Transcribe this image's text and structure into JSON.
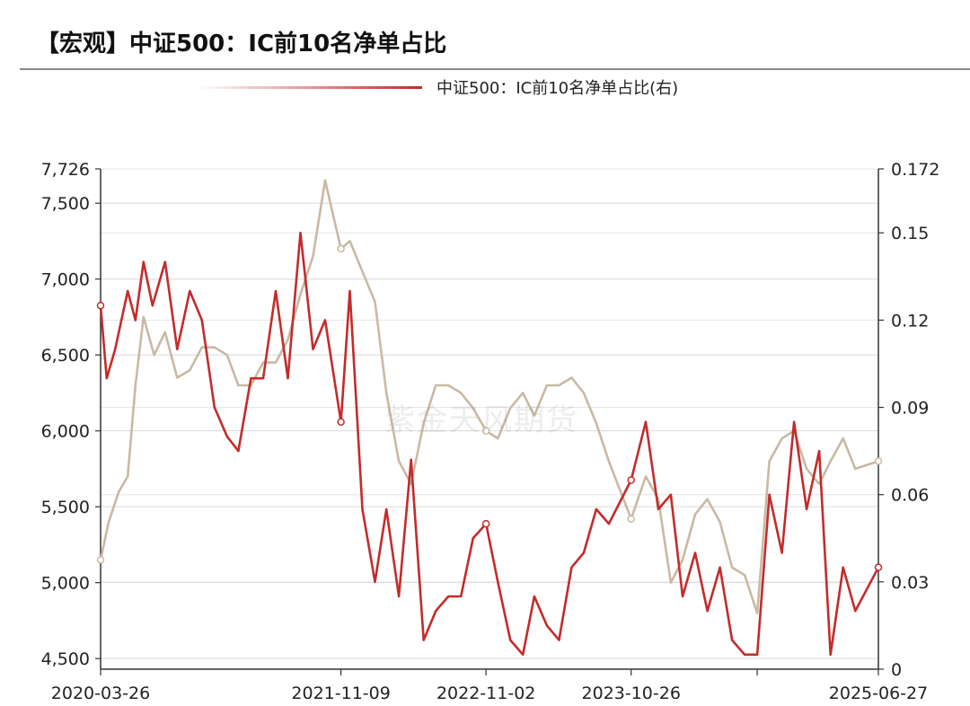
{
  "chart_data": {
    "type": "line",
    "title": "【宏观】中证500：IC前10名净单占比",
    "legend": {
      "position": "top-right",
      "entries": [
        "中证500：IC前10名净单占比(右)"
      ]
    },
    "watermark": "紫金天风期货",
    "x_ticks": [
      "2020-03-26",
      "2021-11-09",
      "2022-11-02",
      "2023-10-26",
      "2025-06-27"
    ],
    "y_left": {
      "min": 4430,
      "max": 7726,
      "ticks": [
        "7,726",
        "7,500",
        "7,000",
        "6,500",
        "6,000",
        "5,500",
        "5,000",
        "4,500"
      ],
      "tick_values": [
        7726,
        7500,
        7000,
        6500,
        6000,
        5500,
        5000,
        4500
      ]
    },
    "y_right": {
      "min": 0,
      "max": 0.172,
      "ticks": [
        "0.172",
        "0.15",
        "0.12",
        "0.09",
        "0.06",
        "0.03",
        "0"
      ],
      "tick_values": [
        0.172,
        0.15,
        0.12,
        0.09,
        0.06,
        0.03,
        0
      ]
    },
    "grid": true,
    "colors": {
      "index": "#c9b9a3",
      "ratio": "#c42b2b"
    },
    "series": [
      {
        "key": "index",
        "axis": "left",
        "dates": [
          "2020-03-26",
          "2020-04-15",
          "2020-05-10",
          "2020-06-01",
          "2020-06-20",
          "2020-07-10",
          "2020-08-05",
          "2020-09-01",
          "2020-10-01",
          "2020-11-01",
          "2020-12-01",
          "2021-01-01",
          "2021-02-01",
          "2021-03-01",
          "2021-04-01",
          "2021-05-01",
          "2021-06-01",
          "2021-07-01",
          "2021-08-01",
          "2021-09-01",
          "2021-10-01",
          "2021-11-09",
          "2021-12-01",
          "2022-01-01",
          "2022-02-01",
          "2022-03-01",
          "2022-04-01",
          "2022-05-01",
          "2022-06-01",
          "2022-07-01",
          "2022-08-01",
          "2022-09-01",
          "2022-10-01",
          "2022-11-02",
          "2022-12-01",
          "2023-01-01",
          "2023-02-01",
          "2023-03-01",
          "2023-04-01",
          "2023-05-01",
          "2023-06-01",
          "2023-07-01",
          "2023-08-01",
          "2023-09-01",
          "2023-10-26",
          "2023-12-01",
          "2024-01-01",
          "2024-02-01",
          "2024-03-01",
          "2024-04-01",
          "2024-05-01",
          "2024-06-01",
          "2024-07-01",
          "2024-08-01",
          "2024-09-01",
          "2024-10-01",
          "2024-11-01",
          "2024-12-01",
          "2025-01-01",
          "2025-02-01",
          "2025-03-01",
          "2025-04-01",
          "2025-05-01",
          "2025-06-27"
        ],
        "values": [
          5150,
          5400,
          5600,
          5700,
          6300,
          6750,
          6500,
          6650,
          6350,
          6400,
          6550,
          6550,
          6500,
          6300,
          6300,
          6450,
          6450,
          6600,
          6900,
          7150,
          7650,
          7200,
          7250,
          7050,
          6850,
          6250,
          5800,
          5650,
          6050,
          6300,
          6300,
          6250,
          6150,
          6000,
          5950,
          6150,
          6250,
          6100,
          6300,
          6300,
          6350,
          6250,
          6050,
          5800,
          5420,
          5700,
          5550,
          5000,
          5150,
          5450,
          5550,
          5400,
          5100,
          5050,
          4800,
          5800,
          5950,
          6000,
          5750,
          5650,
          5800,
          5950,
          5750,
          5800
        ]
      },
      {
        "key": "ratio",
        "axis": "right",
        "dates": [
          "2020-03-26",
          "2020-04-10",
          "2020-05-01",
          "2020-06-01",
          "2020-06-20",
          "2020-07-10",
          "2020-08-01",
          "2020-09-01",
          "2020-10-01",
          "2020-11-01",
          "2020-12-01",
          "2021-01-01",
          "2021-02-01",
          "2021-03-01",
          "2021-04-01",
          "2021-05-01",
          "2021-06-01",
          "2021-07-01",
          "2021-08-01",
          "2021-09-01",
          "2021-10-01",
          "2021-11-09",
          "2021-12-01",
          "2022-01-01",
          "2022-02-01",
          "2022-03-01",
          "2022-04-01",
          "2022-05-01",
          "2022-06-01",
          "2022-07-01",
          "2022-08-01",
          "2022-09-01",
          "2022-10-01",
          "2022-11-02",
          "2022-12-01",
          "2023-01-01",
          "2023-02-01",
          "2023-03-01",
          "2023-04-01",
          "2023-05-01",
          "2023-06-01",
          "2023-07-01",
          "2023-08-01",
          "2023-09-01",
          "2023-10-26",
          "2023-12-01",
          "2024-01-01",
          "2024-02-01",
          "2024-03-01",
          "2024-04-01",
          "2024-05-01",
          "2024-06-01",
          "2024-07-01",
          "2024-08-01",
          "2024-09-01",
          "2024-10-01",
          "2024-11-01",
          "2024-12-01",
          "2025-01-01",
          "2025-02-01",
          "2025-03-01",
          "2025-04-01",
          "2025-05-01",
          "2025-06-27"
        ],
        "values": [
          0.125,
          0.1,
          0.11,
          0.13,
          0.12,
          0.14,
          0.125,
          0.14,
          0.11,
          0.13,
          0.12,
          0.09,
          0.08,
          0.075,
          0.1,
          0.1,
          0.13,
          0.1,
          0.15,
          0.11,
          0.12,
          0.085,
          0.13,
          0.055,
          0.03,
          0.055,
          0.025,
          0.072,
          0.01,
          0.02,
          0.025,
          0.025,
          0.045,
          0.05,
          0.03,
          0.01,
          0.005,
          0.025,
          0.015,
          0.01,
          0.035,
          0.04,
          0.055,
          0.05,
          0.065,
          0.085,
          0.055,
          0.06,
          0.025,
          0.04,
          0.02,
          0.035,
          0.01,
          0.005,
          0.005,
          0.06,
          0.04,
          0.085,
          0.055,
          0.075,
          0.005,
          0.035,
          0.02,
          0.035
        ]
      }
    ]
  }
}
